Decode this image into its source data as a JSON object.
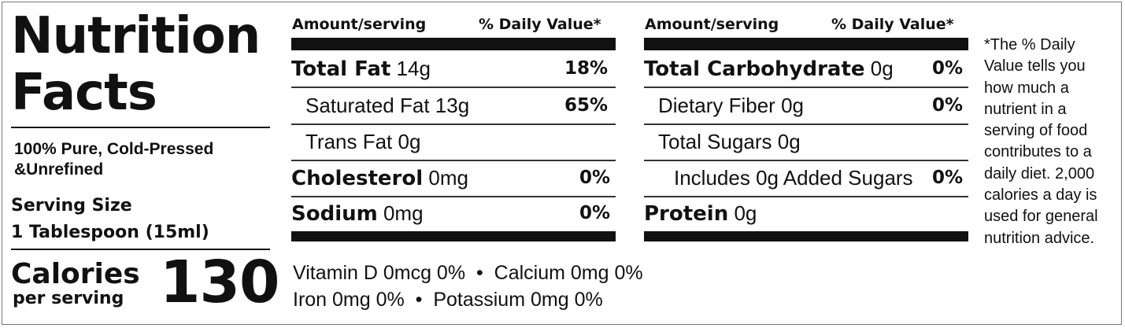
{
  "panel": {
    "title_line1": "Nutrition",
    "title_line2": "Facts",
    "product_line1": "100% Pure, Cold-Pressed",
    "product_line2": "&Unrefined",
    "serving_size_label": "Serving Size",
    "serving_size_value": "1 Tablespoon (15ml)",
    "calories_label": "Calories",
    "calories_sublabel": "per serving",
    "calories_value": "130"
  },
  "column1": {
    "header_amount": "Amount/serving",
    "header_dv": "% Daily Value*",
    "rows": [
      {
        "name": "Total Fat",
        "amount": "14g",
        "dv": "18%"
      },
      {
        "name": "Saturated Fat",
        "amount": "13g",
        "dv": "65%"
      },
      {
        "name": "Trans Fat",
        "amount": "0g",
        "dv": ""
      },
      {
        "name": "Cholesterol",
        "amount": "0mg",
        "dv": "0%"
      },
      {
        "name": "Sodium",
        "amount": "0mg",
        "dv": "0%"
      }
    ]
  },
  "column2": {
    "header_amount": "Amount/serving",
    "header_dv": "% Daily Value*",
    "rows": [
      {
        "name": "Total Carbohydrate",
        "amount": "0g",
        "dv": "0%"
      },
      {
        "name": "Dietary Fiber",
        "amount": "0g",
        "dv": "0%"
      },
      {
        "name": "Total Sugars",
        "amount": "0g",
        "dv": ""
      },
      {
        "name": "Includes 0g Added Sugars",
        "amount": "",
        "dv": "0%"
      },
      {
        "name": "Protein",
        "amount": "0g",
        "dv": ""
      }
    ]
  },
  "micronutrients": {
    "line1_a": "Vitamin D 0mcg 0%",
    "line1_b": "Calcium 0mg 0%",
    "line2_a": "Iron 0mg 0%",
    "line2_b": "Potassium 0mg 0%",
    "separator": "•"
  },
  "footnote": "*The % Daily Value tells you how much a nutrient in a serving of food contributes to a daily diet. 2,000 calories a day is used for general nutrition advice."
}
